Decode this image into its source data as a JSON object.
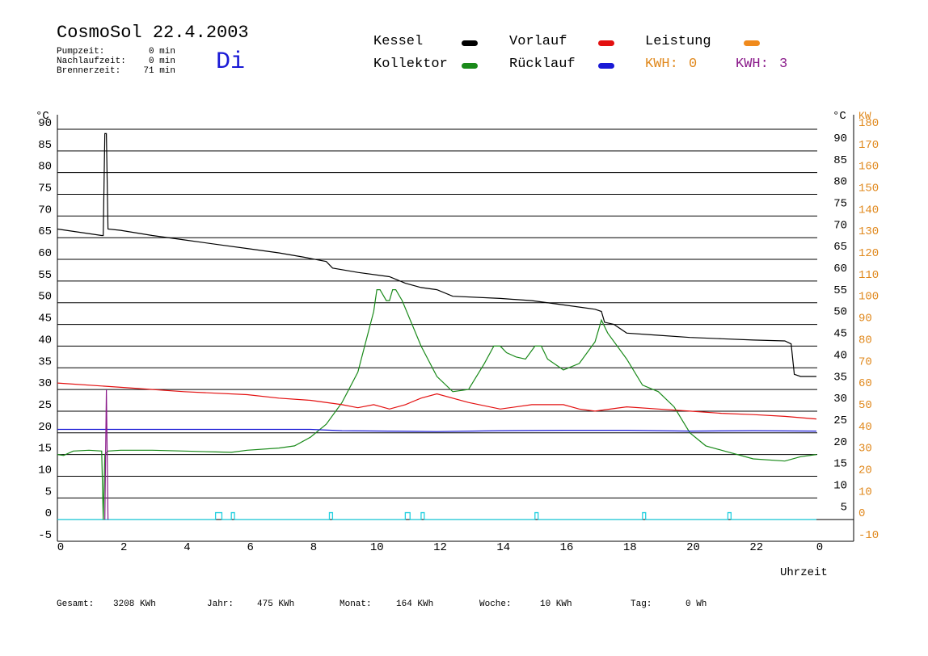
{
  "header": {
    "title": "CosmoSol 22.4.2003",
    "day": "Di",
    "info": [
      {
        "label": "Pumpzeit:",
        "value": "0 min"
      },
      {
        "label": "Nachlaufzeit:",
        "value": "0 min"
      },
      {
        "label": "Brennerzeit:",
        "value": "71 min"
      }
    ]
  },
  "legend": {
    "items": [
      {
        "name": "Kessel",
        "color": "#000000"
      },
      {
        "name": "Vorlauf",
        "color": "#e31010"
      },
      {
        "name": "Leistung",
        "color": "#f08a1c"
      },
      {
        "name": "Kollektor",
        "color": "#1a8a1a"
      },
      {
        "name": "Rücklauf",
        "color": "#1a1ad6"
      }
    ],
    "kwh": [
      {
        "label": "KWH:",
        "value": "0",
        "color": "#e0881c"
      },
      {
        "label": "KWH:",
        "value": "3",
        "color": "#8a1a8a"
      }
    ]
  },
  "footer": [
    {
      "label": "Gesamt:",
      "value": "3208 KWh"
    },
    {
      "label": "Jahr:",
      "value": "475 KWh"
    },
    {
      "label": "Monat:",
      "value": "164 KWh"
    },
    {
      "label": "Woche:",
      "value": "10 KWh"
    },
    {
      "label": "Tag:",
      "value": "0 Wh"
    }
  ],
  "colors": {
    "grid": "#000000",
    "kw_axis": "#e0881c",
    "pump": "#22d0e0",
    "spike": "#8a1a8a"
  },
  "chart_data": {
    "type": "line",
    "xlabel": "Uhrzeit",
    "xlim": [
      0,
      24
    ],
    "x_ticks": [
      "0",
      "2",
      "4",
      "6",
      "8",
      "10",
      "12",
      "14",
      "16",
      "18",
      "20",
      "22",
      "0"
    ],
    "ylabel_left": "°C",
    "ylabel_right": "°C",
    "ylabel_right2": "KW",
    "ylim": [
      -5,
      90
    ],
    "y_ticks_left": [
      "-5",
      "0",
      "5",
      "10",
      "15",
      "20",
      "25",
      "30",
      "35",
      "40",
      "45",
      "50",
      "55",
      "60",
      "65",
      "70",
      "75",
      "80",
      "85",
      "90"
    ],
    "y_ticks_right": [
      "5",
      "10",
      "15",
      "20",
      "25",
      "30",
      "35",
      "40",
      "45",
      "50",
      "55",
      "60",
      "65",
      "70",
      "75",
      "80",
      "85",
      "90"
    ],
    "y_ticks_kw": [
      "-10",
      "0",
      "10",
      "20",
      "30",
      "40",
      "50",
      "60",
      "70",
      "80",
      "90",
      "100",
      "110",
      "120",
      "130",
      "140",
      "150",
      "160",
      "170",
      "180"
    ],
    "grid": true,
    "series": [
      {
        "name": "Kessel",
        "color": "#000000",
        "points": [
          [
            0,
            67
          ],
          [
            1.4,
            65.5
          ],
          [
            1.45,
            65.5
          ],
          [
            1.5,
            89
          ],
          [
            1.55,
            89
          ],
          [
            1.6,
            67
          ],
          [
            2,
            66.7
          ],
          [
            3,
            65.5
          ],
          [
            4,
            64.5
          ],
          [
            5,
            63.5
          ],
          [
            6,
            62.5
          ],
          [
            7,
            61.5
          ],
          [
            7.8,
            60.5
          ],
          [
            8.5,
            59.5
          ],
          [
            8.7,
            58
          ],
          [
            9.5,
            57
          ],
          [
            10.5,
            56
          ],
          [
            11,
            54.5
          ],
          [
            11.5,
            53.5
          ],
          [
            12,
            53
          ],
          [
            12.5,
            51.5
          ],
          [
            14,
            51
          ],
          [
            15,
            50.5
          ],
          [
            16,
            49.5
          ],
          [
            17,
            48.5
          ],
          [
            17.2,
            48
          ],
          [
            17.3,
            45.5
          ],
          [
            17.6,
            45
          ],
          [
            18,
            43
          ],
          [
            19,
            42.5
          ],
          [
            20,
            42
          ],
          [
            21,
            41.7
          ],
          [
            22,
            41.4
          ],
          [
            23,
            41.2
          ],
          [
            23.2,
            40.5
          ],
          [
            23.3,
            33.5
          ],
          [
            23.5,
            33
          ],
          [
            24,
            33
          ]
        ]
      },
      {
        "name": "Kollektor",
        "color": "#1a8a1a",
        "points": [
          [
            0,
            15
          ],
          [
            0.2,
            14.8
          ],
          [
            0.5,
            15.8
          ],
          [
            1,
            16
          ],
          [
            1.4,
            15.8
          ],
          [
            1.45,
            0
          ],
          [
            1.5,
            15
          ],
          [
            1.6,
            15.8
          ],
          [
            2,
            16
          ],
          [
            3,
            16
          ],
          [
            4,
            15.8
          ],
          [
            5,
            15.6
          ],
          [
            5.5,
            15.5
          ],
          [
            6,
            16
          ],
          [
            7,
            16.5
          ],
          [
            7.5,
            17
          ],
          [
            8,
            19
          ],
          [
            8.5,
            22
          ],
          [
            9,
            27
          ],
          [
            9.5,
            34
          ],
          [
            10,
            48
          ],
          [
            10.1,
            53
          ],
          [
            10.2,
            53
          ],
          [
            10.4,
            50.5
          ],
          [
            10.5,
            50.5
          ],
          [
            10.6,
            53
          ],
          [
            10.7,
            53
          ],
          [
            10.9,
            50.5
          ],
          [
            11.5,
            40
          ],
          [
            12,
            33
          ],
          [
            12.5,
            29.5
          ],
          [
            13,
            30
          ],
          [
            13.5,
            36
          ],
          [
            13.8,
            40
          ],
          [
            14,
            40
          ],
          [
            14.2,
            38.5
          ],
          [
            14.5,
            37.5
          ],
          [
            14.8,
            37
          ],
          [
            15.1,
            40
          ],
          [
            15.3,
            40
          ],
          [
            15.5,
            37
          ],
          [
            16,
            34.5
          ],
          [
            16.5,
            36
          ],
          [
            17,
            41
          ],
          [
            17.2,
            46
          ],
          [
            17.4,
            43
          ],
          [
            18,
            37
          ],
          [
            18.5,
            31
          ],
          [
            19,
            29.5
          ],
          [
            19.5,
            26
          ],
          [
            20,
            20
          ],
          [
            20.5,
            17
          ],
          [
            21,
            16
          ],
          [
            22,
            14
          ],
          [
            23,
            13.5
          ],
          [
            23.5,
            14.5
          ],
          [
            24,
            15
          ]
        ]
      },
      {
        "name": "Vorlauf",
        "color": "#e31010",
        "points": [
          [
            0,
            31.5
          ],
          [
            2,
            30.5
          ],
          [
            4,
            29.5
          ],
          [
            6,
            28.8
          ],
          [
            7,
            28
          ],
          [
            8,
            27.5
          ],
          [
            9,
            26.5
          ],
          [
            9.5,
            25.8
          ],
          [
            10,
            26.5
          ],
          [
            10.5,
            25.5
          ],
          [
            11,
            26.5
          ],
          [
            11.5,
            28
          ],
          [
            12,
            29
          ],
          [
            13,
            27
          ],
          [
            14,
            25.5
          ],
          [
            15,
            26.5
          ],
          [
            16,
            26.5
          ],
          [
            16.5,
            25.5
          ],
          [
            17,
            25
          ],
          [
            18,
            26
          ],
          [
            19,
            25.5
          ],
          [
            20,
            25
          ],
          [
            21,
            24.5
          ],
          [
            22,
            24.2
          ],
          [
            23,
            23.8
          ],
          [
            24,
            23.2
          ]
        ]
      },
      {
        "name": "Rücklauf",
        "color": "#1a1ad6",
        "points": [
          [
            0,
            20.8
          ],
          [
            1.4,
            20.8
          ],
          [
            2,
            20.8
          ],
          [
            8,
            20.8
          ],
          [
            9,
            20.5
          ],
          [
            12,
            20.3
          ],
          [
            14,
            20.5
          ],
          [
            16,
            20.6
          ],
          [
            18,
            20.6
          ],
          [
            20,
            20.4
          ],
          [
            22,
            20.5
          ],
          [
            24,
            20.4
          ]
        ]
      },
      {
        "name": "Leistung",
        "color": "#8a1a8a",
        "points": [
          [
            1.5,
            0
          ],
          [
            1.55,
            30
          ],
          [
            1.6,
            0
          ]
        ]
      }
    ],
    "pump_pulses": [
      [
        5,
        5.2
      ],
      [
        5.5,
        5.6
      ],
      [
        8.6,
        8.7
      ],
      [
        11,
        11.15
      ],
      [
        11.5,
        11.6
      ],
      [
        15.1,
        15.2
      ],
      [
        18.5,
        18.6
      ],
      [
        21.2,
        21.3
      ]
    ]
  }
}
